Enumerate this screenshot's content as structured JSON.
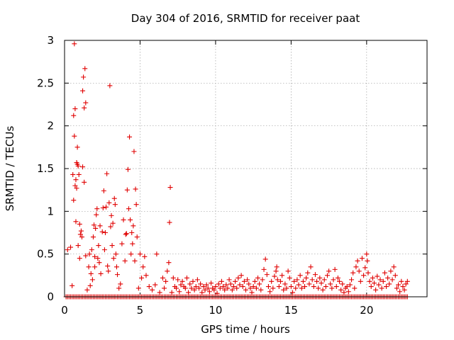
{
  "chart_data": {
    "type": "scatter",
    "title": "Day 304 of 2016, SRMTID for receiver paat",
    "xlabel": "GPS time / hours",
    "ylabel": "SRMTID / TECUs",
    "xlim": [
      0,
      24
    ],
    "ylim": [
      0,
      3
    ],
    "xticks": [
      0,
      5,
      10,
      15,
      20
    ],
    "xtick_labels": [
      "0",
      "5",
      "10",
      "15",
      "20"
    ],
    "yticks": [
      0,
      0.5,
      1,
      1.5,
      2,
      2.5,
      3
    ],
    "ytick_labels": [
      "0",
      "0.5",
      "1",
      "1.5",
      "2",
      "2.5",
      "3"
    ],
    "grid": true,
    "marker": "+",
    "color": "#e00000",
    "zero_baseline": {
      "x_start": 0.1,
      "x_end": 22.7,
      "step": 0.1,
      "y": 0
    },
    "series": [
      {
        "name": "SRMTID",
        "points": [
          [
            0.2,
            0.55
          ],
          [
            0.4,
            0.58
          ],
          [
            0.5,
            0.13
          ],
          [
            0.55,
            1.43
          ],
          [
            0.6,
            1.13
          ],
          [
            0.6,
            2.12
          ],
          [
            0.65,
            2.96
          ],
          [
            0.65,
            1.88
          ],
          [
            0.7,
            2.2
          ],
          [
            0.7,
            1.3
          ],
          [
            0.75,
            0.88
          ],
          [
            0.75,
            1.37
          ],
          [
            0.8,
            1.27
          ],
          [
            0.8,
            1.57
          ],
          [
            0.85,
            1.75
          ],
          [
            0.85,
            1.55
          ],
          [
            0.9,
            1.53
          ],
          [
            0.9,
            0.6
          ],
          [
            0.95,
            1.43
          ],
          [
            1.0,
            0.85
          ],
          [
            1.0,
            0.45
          ],
          [
            1.05,
            0.73
          ],
          [
            1.1,
            0.77
          ],
          [
            1.15,
            0.7
          ],
          [
            1.2,
            2.41
          ],
          [
            1.2,
            1.52
          ],
          [
            1.25,
            2.57
          ],
          [
            1.3,
            1.34
          ],
          [
            1.3,
            2.21
          ],
          [
            1.35,
            2.67
          ],
          [
            1.4,
            2.27
          ],
          [
            1.4,
            0.48
          ],
          [
            1.5,
            0.08
          ],
          [
            1.6,
            0.35
          ],
          [
            1.65,
            0.5
          ],
          [
            1.7,
            0.13
          ],
          [
            1.75,
            0.27
          ],
          [
            1.8,
            0.55
          ],
          [
            1.85,
            0.2
          ],
          [
            1.9,
            0.7
          ],
          [
            1.95,
            0.84
          ],
          [
            2.0,
            0.47
          ],
          [
            2.0,
            0.35
          ],
          [
            2.05,
            0.8
          ],
          [
            2.1,
            0.96
          ],
          [
            2.15,
            1.03
          ],
          [
            2.2,
            0.45
          ],
          [
            2.25,
            0.6
          ],
          [
            2.3,
            0.4
          ],
          [
            2.35,
            0.83
          ],
          [
            2.4,
            0.27
          ],
          [
            2.5,
            0.76
          ],
          [
            2.55,
            1.04
          ],
          [
            2.6,
            1.24
          ],
          [
            2.65,
            0.55
          ],
          [
            2.7,
            0.75
          ],
          [
            2.75,
            1.05
          ],
          [
            2.8,
            1.44
          ],
          [
            2.85,
            0.36
          ],
          [
            2.9,
            0.3
          ],
          [
            2.95,
            1.1
          ],
          [
            3.0,
            2.47
          ],
          [
            3.05,
            0.82
          ],
          [
            3.1,
            0.95
          ],
          [
            3.15,
            0.6
          ],
          [
            3.2,
            0.86
          ],
          [
            3.25,
            0.45
          ],
          [
            3.3,
            1.15
          ],
          [
            3.35,
            1.08
          ],
          [
            3.4,
            0.5
          ],
          [
            3.45,
            0.35
          ],
          [
            3.5,
            0.26
          ],
          [
            3.6,
            0.1
          ],
          [
            3.7,
            0.15
          ],
          [
            3.8,
            0.62
          ],
          [
            3.9,
            0.9
          ],
          [
            4.0,
            0.42
          ],
          [
            4.05,
            0.73
          ],
          [
            4.1,
            0.74
          ],
          [
            4.15,
            1.25
          ],
          [
            4.2,
            1.49
          ],
          [
            4.25,
            1.03
          ],
          [
            4.3,
            1.87
          ],
          [
            4.35,
            0.9
          ],
          [
            4.4,
            0.5
          ],
          [
            4.45,
            0.75
          ],
          [
            4.5,
            0.62
          ],
          [
            4.55,
            0.83
          ],
          [
            4.6,
            1.7
          ],
          [
            4.65,
            0.42
          ],
          [
            4.7,
            1.26
          ],
          [
            4.75,
            1.08
          ],
          [
            4.8,
            0.7
          ],
          [
            4.9,
            0.1
          ],
          [
            5.0,
            0.5
          ],
          [
            5.1,
            0.22
          ],
          [
            5.2,
            0.35
          ],
          [
            5.3,
            0.47
          ],
          [
            5.4,
            0.25
          ],
          [
            5.6,
            0.12
          ],
          [
            5.8,
            0.08
          ],
          [
            6.0,
            0.14
          ],
          [
            6.1,
            0.5
          ],
          [
            6.3,
            0.05
          ],
          [
            6.5,
            0.22
          ],
          [
            6.6,
            0.1
          ],
          [
            6.7,
            0.18
          ],
          [
            6.8,
            0.3
          ],
          [
            6.9,
            0.4
          ],
          [
            6.95,
            0.87
          ],
          [
            7.0,
            1.28
          ],
          [
            7.1,
            0.05
          ],
          [
            7.2,
            0.22
          ],
          [
            7.3,
            0.12
          ],
          [
            7.4,
            0.1
          ],
          [
            7.5,
            0.2
          ],
          [
            7.6,
            0.06
          ],
          [
            7.7,
            0.14
          ],
          [
            7.8,
            0.18
          ],
          [
            7.9,
            0.12
          ],
          [
            8.0,
            0.1
          ],
          [
            8.1,
            0.22
          ],
          [
            8.2,
            0.05
          ],
          [
            8.3,
            0.15
          ],
          [
            8.4,
            0.1
          ],
          [
            8.5,
            0.18
          ],
          [
            8.6,
            0.08
          ],
          [
            8.7,
            0.12
          ],
          [
            8.8,
            0.2
          ],
          [
            8.9,
            0.1
          ],
          [
            9.0,
            0.15
          ],
          [
            9.1,
            0.05
          ],
          [
            9.2,
            0.12
          ],
          [
            9.3,
            0.08
          ],
          [
            9.4,
            0.14
          ],
          [
            9.5,
            0.1
          ],
          [
            9.6,
            0.06
          ],
          [
            9.7,
            0.16
          ],
          [
            9.8,
            0.1
          ],
          [
            9.9,
            0.08
          ],
          [
            10.0,
            0.12
          ],
          [
            10.1,
            0.04
          ],
          [
            10.2,
            0.15
          ],
          [
            10.3,
            0.1
          ],
          [
            10.4,
            0.18
          ],
          [
            10.5,
            0.12
          ],
          [
            10.6,
            0.08
          ],
          [
            10.7,
            0.14
          ],
          [
            10.8,
            0.1
          ],
          [
            10.9,
            0.2
          ],
          [
            11.0,
            0.15
          ],
          [
            11.1,
            0.08
          ],
          [
            11.2,
            0.12
          ],
          [
            11.3,
            0.18
          ],
          [
            11.4,
            0.1
          ],
          [
            11.5,
            0.22
          ],
          [
            11.6,
            0.14
          ],
          [
            11.7,
            0.25
          ],
          [
            11.8,
            0.12
          ],
          [
            11.9,
            0.18
          ],
          [
            12.0,
            0.08
          ],
          [
            12.1,
            0.2
          ],
          [
            12.2,
            0.15
          ],
          [
            12.3,
            0.1
          ],
          [
            12.4,
            0.05
          ],
          [
            12.5,
            0.12
          ],
          [
            12.6,
            0.18
          ],
          [
            12.7,
            0.1
          ],
          [
            12.8,
            0.22
          ],
          [
            12.9,
            0.15
          ],
          [
            13.0,
            0.08
          ],
          [
            13.1,
            0.2
          ],
          [
            13.2,
            0.32
          ],
          [
            13.3,
            0.44
          ],
          [
            13.4,
            0.26
          ],
          [
            13.5,
            0.12
          ],
          [
            13.6,
            0.06
          ],
          [
            13.7,
            0.18
          ],
          [
            13.8,
            0.1
          ],
          [
            13.9,
            0.24
          ],
          [
            14.0,
            0.3
          ],
          [
            14.05,
            0.35
          ],
          [
            14.1,
            0.2
          ],
          [
            14.2,
            0.12
          ],
          [
            14.3,
            0.18
          ],
          [
            14.4,
            0.25
          ],
          [
            14.5,
            0.08
          ],
          [
            14.6,
            0.15
          ],
          [
            14.7,
            0.1
          ],
          [
            14.8,
            0.3
          ],
          [
            14.9,
            0.22
          ],
          [
            15.0,
            0.12
          ],
          [
            15.1,
            0.05
          ],
          [
            15.2,
            0.18
          ],
          [
            15.3,
            0.1
          ],
          [
            15.4,
            0.2
          ],
          [
            15.5,
            0.14
          ],
          [
            15.6,
            0.25
          ],
          [
            15.7,
            0.1
          ],
          [
            15.8,
            0.18
          ],
          [
            15.9,
            0.12
          ],
          [
            16.0,
            0.22
          ],
          [
            16.1,
            0.28
          ],
          [
            16.2,
            0.15
          ],
          [
            16.3,
            0.35
          ],
          [
            16.4,
            0.2
          ],
          [
            16.5,
            0.12
          ],
          [
            16.6,
            0.26
          ],
          [
            16.7,
            0.18
          ],
          [
            16.8,
            0.1
          ],
          [
            16.9,
            0.22
          ],
          [
            17.0,
            0.16
          ],
          [
            17.1,
            0.08
          ],
          [
            17.2,
            0.2
          ],
          [
            17.3,
            0.12
          ],
          [
            17.4,
            0.25
          ],
          [
            17.5,
            0.3
          ],
          [
            17.6,
            0.15
          ],
          [
            17.7,
            0.1
          ],
          [
            17.8,
            0.2
          ],
          [
            17.9,
            0.32
          ],
          [
            18.0,
            0.12
          ],
          [
            18.1,
            0.22
          ],
          [
            18.2,
            0.18
          ],
          [
            18.3,
            0.08
          ],
          [
            18.4,
            0.15
          ],
          [
            18.5,
            0.05
          ],
          [
            18.6,
            0.1
          ],
          [
            18.7,
            0.12
          ],
          [
            18.8,
            0.06
          ],
          [
            18.9,
            0.14
          ],
          [
            19.0,
            0.2
          ],
          [
            19.1,
            0.28
          ],
          [
            19.2,
            0.1
          ],
          [
            19.3,
            0.35
          ],
          [
            19.4,
            0.42
          ],
          [
            19.5,
            0.3
          ],
          [
            19.6,
            0.18
          ],
          [
            19.7,
            0.45
          ],
          [
            19.8,
            0.25
          ],
          [
            19.9,
            0.34
          ],
          [
            20.0,
            0.5
          ],
          [
            20.05,
            0.42
          ],
          [
            20.1,
            0.28
          ],
          [
            20.2,
            0.18
          ],
          [
            20.3,
            0.12
          ],
          [
            20.4,
            0.22
          ],
          [
            20.5,
            0.16
          ],
          [
            20.6,
            0.08
          ],
          [
            20.7,
            0.24
          ],
          [
            20.8,
            0.14
          ],
          [
            20.9,
            0.2
          ],
          [
            21.0,
            0.1
          ],
          [
            21.1,
            0.18
          ],
          [
            21.2,
            0.28
          ],
          [
            21.3,
            0.12
          ],
          [
            21.4,
            0.22
          ],
          [
            21.5,
            0.15
          ],
          [
            21.6,
            0.3
          ],
          [
            21.7,
            0.2
          ],
          [
            21.8,
            0.35
          ],
          [
            21.9,
            0.25
          ],
          [
            22.0,
            0.1
          ],
          [
            22.1,
            0.14
          ],
          [
            22.2,
            0.06
          ],
          [
            22.3,
            0.18
          ],
          [
            22.4,
            0.12
          ],
          [
            22.5,
            0.08
          ],
          [
            22.6,
            0.15
          ],
          [
            22.7,
            0.18
          ]
        ]
      }
    ]
  }
}
